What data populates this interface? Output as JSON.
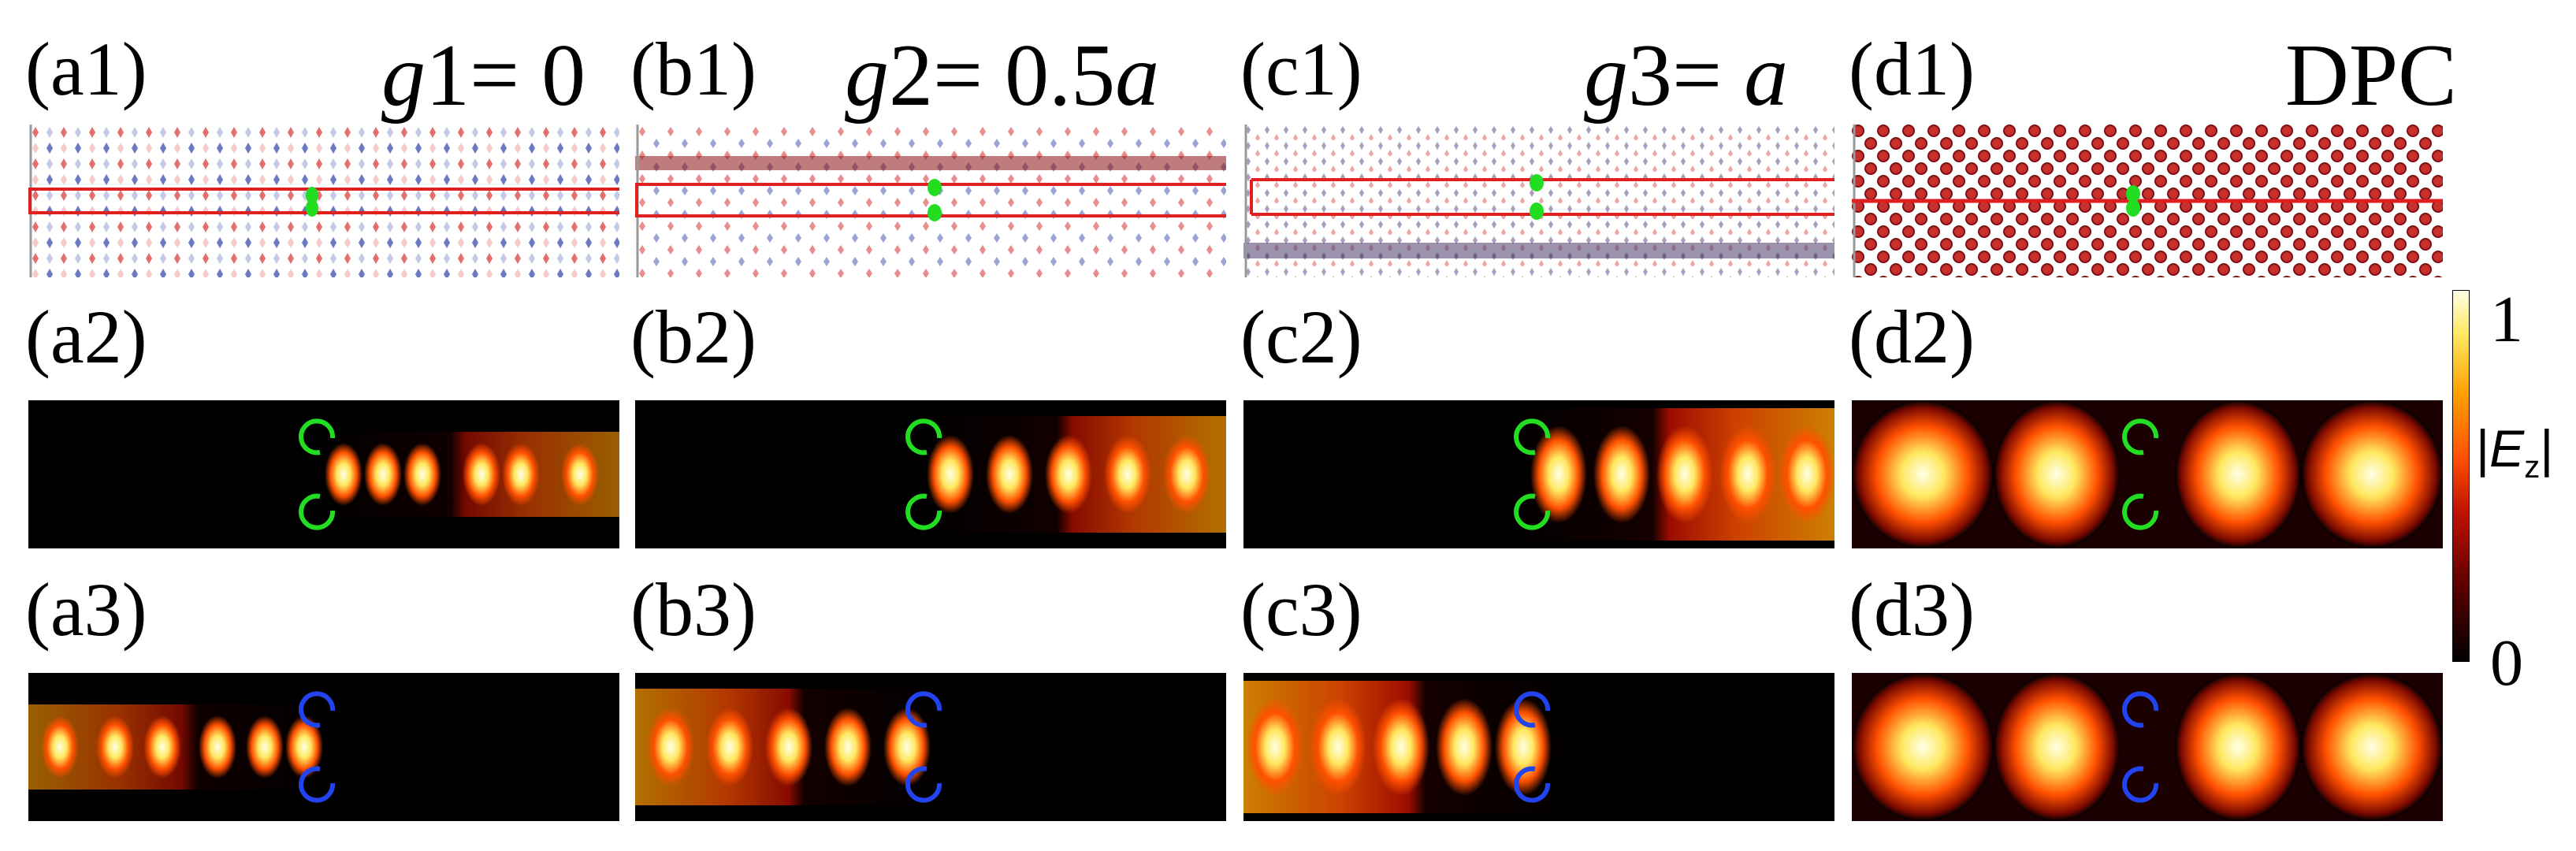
{
  "figure": {
    "columns": [
      {
        "id": "a",
        "labels": [
          "(a1)",
          "(a2)",
          "(a3)"
        ],
        "title": {
          "var": "g",
          "index": "1",
          "eq": "= ",
          "value": "0",
          "unit": ""
        }
      },
      {
        "id": "b",
        "labels": [
          "(b1)",
          "(b2)",
          "(b3)"
        ],
        "title": {
          "var": "g",
          "index": "2",
          "eq": "= ",
          "value": "0.5",
          "unit": "a"
        }
      },
      {
        "id": "c",
        "labels": [
          "(c1)",
          "(c2)",
          "(c3)"
        ],
        "title": {
          "var": "g",
          "index": "3",
          "eq": "= ",
          "value": "",
          "unit": "a"
        }
      },
      {
        "id": "d",
        "labels": [
          "(d1)",
          "(d2)",
          "(d3)"
        ],
        "title": {
          "var": "",
          "index": "",
          "eq": "",
          "value": "DPC",
          "unit": ""
        }
      }
    ],
    "colorbar": {
      "max": "1",
      "min": "0",
      "label_symbol": "E",
      "label_sub": "z",
      "colors": [
        "#000000",
        "#5a0000",
        "#c01000",
        "#ff5000",
        "#ffa000",
        "#ffe860",
        "#ffffe8"
      ]
    },
    "colors": {
      "structure_red": "#e02020",
      "source_green": "#22dd22",
      "source_blue": "#2244ee",
      "rod_red": "#d84040",
      "rod_blue": "#3a4aa8"
    }
  }
}
